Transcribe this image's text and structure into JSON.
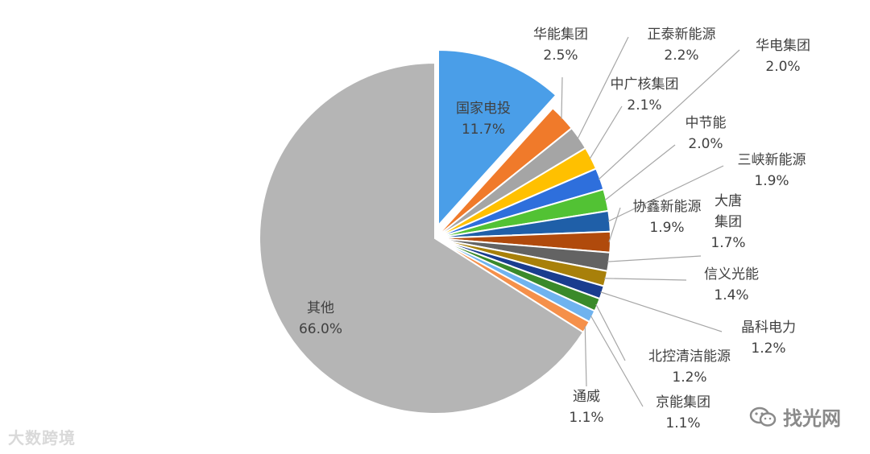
{
  "chart_data": {
    "type": "pie",
    "title": "",
    "slices": [
      {
        "label": "国家电投",
        "value": 11.7,
        "display": "11.7%",
        "color": "#4a9ee8"
      },
      {
        "label": "华能集团",
        "value": 2.5,
        "display": "2.5%",
        "color": "#f07a2a"
      },
      {
        "label": "正泰新能源",
        "value": 2.2,
        "display": "2.2%",
        "color": "#a5a5a5"
      },
      {
        "label": "中广核集团",
        "value": 2.1,
        "display": "2.1%",
        "color": "#ffc000"
      },
      {
        "label": "华电集团",
        "value": 2.0,
        "display": "2.0%",
        "color": "#2e6fdc"
      },
      {
        "label": "中节能",
        "value": 2.0,
        "display": "2.0%",
        "color": "#52c234"
      },
      {
        "label": "三峡新能源",
        "value": 1.9,
        "display": "1.9%",
        "color": "#1f5fa8"
      },
      {
        "label": "协鑫新能源",
        "value": 1.9,
        "display": "1.9%",
        "color": "#b04a0c"
      },
      {
        "label": "大唐集团",
        "value": 1.7,
        "display": "1.7%",
        "color": "#636363"
      },
      {
        "label": "信义光能",
        "value": 1.4,
        "display": "1.4%",
        "color": "#a8800a"
      },
      {
        "label": "晶科电力",
        "value": 1.2,
        "display": "1.2%",
        "color": "#1a3d8f"
      },
      {
        "label": "北控清洁能源",
        "value": 1.2,
        "display": "1.2%",
        "color": "#3a8a2a"
      },
      {
        "label": "京能集团",
        "value": 1.1,
        "display": "1.1%",
        "color": "#6fb3ef"
      },
      {
        "label": "通威",
        "value": 1.1,
        "display": "1.1%",
        "color": "#f5904a"
      },
      {
        "label": "其他",
        "value": 66.0,
        "display": "66.0%",
        "color": "#b5b5b5"
      }
    ],
    "start_angle": "12 o'clock, clockwise",
    "exploded_slice": "国家电投"
  },
  "watermarks": {
    "left": "大数跨境",
    "right": "找光网"
  }
}
